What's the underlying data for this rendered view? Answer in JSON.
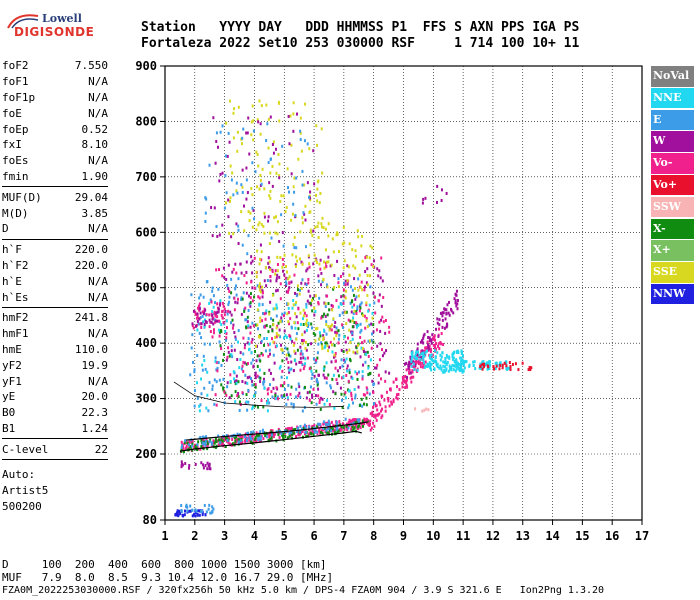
{
  "logo": {
    "line1": "Lowell",
    "line2": "DIGISONDE"
  },
  "header": {
    "line1": "Station   YYYY DAY   DDD HHMMSS P1  FFS S AXN PPS IGA PS",
    "line2": "Fortaleza 2022 Set10 253 030000 RSF     1 714 100 10+ 11"
  },
  "params": {
    "group1": [
      {
        "label": "foF2",
        "value": "7.550"
      },
      {
        "label": "foF1",
        "value": "N/A"
      },
      {
        "label": "foF1p",
        "value": "N/A"
      },
      {
        "label": "foE",
        "value": "N/A"
      },
      {
        "label": "foEp",
        "value": "0.52"
      },
      {
        "label": "fxI",
        "value": "8.10"
      },
      {
        "label": "foEs",
        "value": "N/A"
      },
      {
        "label": "fmin",
        "value": "1.90"
      }
    ],
    "group2": [
      {
        "label": "MUF(D)",
        "value": "29.04"
      },
      {
        "label": "M(D)",
        "value": "3.85"
      },
      {
        "label": "D",
        "value": "N/A"
      }
    ],
    "group3": [
      {
        "label": "h`F",
        "value": "220.0"
      },
      {
        "label": "h`F2",
        "value": "220.0"
      },
      {
        "label": "h`E",
        "value": "N/A"
      },
      {
        "label": "h`Es",
        "value": "N/A"
      }
    ],
    "group4": [
      {
        "label": "hmF2",
        "value": "241.8"
      },
      {
        "label": "hmF1",
        "value": "N/A"
      },
      {
        "label": "hmE",
        "value": "110.0"
      },
      {
        "label": "yF2",
        "value": "19.9"
      },
      {
        "label": "yF1",
        "value": "N/A"
      },
      {
        "label": "yE",
        "value": "20.0"
      },
      {
        "label": "B0",
        "value": "22.3"
      },
      {
        "label": "B1",
        "value": "1.24"
      }
    ],
    "group5": [
      {
        "label": "C-level",
        "value": "22"
      }
    ],
    "auto": [
      "Auto:",
      "Artist5",
      "500200"
    ]
  },
  "legend": [
    {
      "label": "NoVal",
      "color": "#808080"
    },
    {
      "label": "NNE",
      "color": "#22d8f0"
    },
    {
      "label": "E",
      "color": "#3d9ce8"
    },
    {
      "label": "W",
      "color": "#a0109c"
    },
    {
      "label": "Vo-",
      "color": "#f0208c"
    },
    {
      "label": "Vo+",
      "color": "#e8102c"
    },
    {
      "label": "SSW",
      "color": "#f8b4b4"
    },
    {
      "label": "X-",
      "color": "#108c10"
    },
    {
      "label": "X+",
      "color": "#78c060"
    },
    {
      "label": "SSE",
      "color": "#d8d820"
    },
    {
      "label": "NNW",
      "color": "#2020e0"
    }
  ],
  "footer": {
    "line1": "D     100  200  400  600  800 1000 1500 3000 [km]",
    "line2": "MUF   7.9  8.0  8.5  9.3 10.4 12.0 16.7 29.0 [MHz]",
    "line3": "FZA0M_2022253030000.RSF / 320fx256h 50 kHz 5.0 km / DPS-4 FZA0M 904 / 3.9 S 321.6 E   Ion2Png 1.3.20"
  },
  "chart_data": {
    "type": "scatter",
    "xlim": [
      1,
      17
    ],
    "ylim": [
      80,
      900
    ],
    "x_ticks": [
      1,
      2,
      3,
      4,
      5,
      6,
      7,
      8,
      9,
      10,
      11,
      12,
      13,
      14,
      15,
      16,
      17
    ],
    "y_ticks": [
      80,
      200,
      300,
      400,
      500,
      600,
      700,
      800,
      900
    ],
    "grid": true,
    "profile_curve": [
      [
        1.5,
        205
      ],
      [
        2,
        209
      ],
      [
        3,
        215
      ],
      [
        4,
        220
      ],
      [
        5,
        226
      ],
      [
        6,
        232
      ],
      [
        7,
        238
      ],
      [
        7.4,
        241
      ],
      [
        7.6,
        238
      ]
    ],
    "trace_curve": [
      [
        1.7,
        225
      ],
      [
        2.5,
        229
      ],
      [
        3.5,
        234
      ],
      [
        4.5,
        238
      ],
      [
        5.5,
        243
      ],
      [
        6.5,
        249
      ],
      [
        7.5,
        255
      ],
      [
        7.8,
        258
      ]
    ],
    "upper_trace": [
      [
        1.3,
        330
      ],
      [
        2,
        305
      ],
      [
        3,
        292
      ],
      [
        4,
        288
      ],
      [
        5,
        285
      ],
      [
        6,
        284
      ],
      [
        7,
        286
      ]
    ],
    "clusters": [
      {
        "name": "F-trace",
        "color": "#f0208c",
        "x": [
          1.5,
          7.8
        ],
        "y": [
          215,
          260
        ],
        "n": 320
      },
      {
        "name": "F-trace",
        "color": "#108c10",
        "x": [
          1.5,
          7.8
        ],
        "y": [
          215,
          255
        ],
        "n": 140
      },
      {
        "name": "F-trace",
        "color": "#3d9ce8",
        "x": [
          1.5,
          7.5
        ],
        "y": [
          220,
          260
        ],
        "n": 100
      },
      {
        "name": "F2-rise",
        "color": "#f0208c",
        "x": [
          7.8,
          10.3
        ],
        "y": [
          260,
          420
        ],
        "n": 160
      },
      {
        "name": "F2-rise",
        "color": "#a0109c",
        "x": [
          9,
          10.8
        ],
        "y": [
          350,
          480
        ],
        "n": 90
      },
      {
        "name": "F2-top",
        "color": "#22d8f0",
        "x": [
          9.2,
          11
        ],
        "y": [
          350,
          390
        ],
        "n": 140
      },
      {
        "name": "F2-tail",
        "color": "#22d8f0",
        "x": [
          10.5,
          12.5
        ],
        "y": [
          355,
          370
        ],
        "n": 60
      },
      {
        "name": "F2-tail",
        "color": "#e8102c",
        "x": [
          11.5,
          13.3
        ],
        "y": [
          355,
          368
        ],
        "n": 30
      },
      {
        "name": "spread",
        "color": "#a0109c",
        "x": [
          2.8,
          8.5
        ],
        "y": [
          300,
          560
        ],
        "n": 260
      },
      {
        "name": "spread",
        "color": "#3d9ce8",
        "x": [
          1.8,
          8
        ],
        "y": [
          280,
          520
        ],
        "n": 260
      },
      {
        "name": "spread",
        "color": "#108c10",
        "x": [
          2.8,
          8
        ],
        "y": [
          280,
          500
        ],
        "n": 140
      },
      {
        "name": "spread",
        "color": "#f0208c",
        "x": [
          2.5,
          8.5
        ],
        "y": [
          290,
          560
        ],
        "n": 220
      },
      {
        "name": "spread",
        "color": "#22d8f0",
        "x": [
          2,
          8
        ],
        "y": [
          280,
          480
        ],
        "n": 120
      },
      {
        "name": "spread-high",
        "color": "#d8d820",
        "x": [
          4,
          8
        ],
        "y": [
          380,
          620
        ],
        "n": 200
      },
      {
        "name": "spread-top",
        "color": "#d8d820",
        "x": [
          3,
          6.3
        ],
        "y": [
          600,
          840
        ],
        "n": 110
      },
      {
        "name": "spread-top",
        "color": "#a0109c",
        "x": [
          2.5,
          6
        ],
        "y": [
          570,
          820
        ],
        "n": 60
      },
      {
        "name": "spread-top",
        "color": "#3d9ce8",
        "x": [
          2.3,
          6
        ],
        "y": [
          560,
          800
        ],
        "n": 60
      },
      {
        "name": "oblique-left",
        "color": "#f0208c",
        "x": [
          1.8,
          3
        ],
        "y": [
          430,
          475
        ],
        "n": 40
      },
      {
        "name": "oblique-left",
        "color": "#a0109c",
        "x": [
          1.8,
          2.8
        ],
        "y": [
          430,
          465
        ],
        "n": 25
      },
      {
        "name": "E-layer",
        "color": "#a0109c",
        "x": [
          1.5,
          2.5
        ],
        "y": [
          175,
          190
        ],
        "n": 20
      },
      {
        "name": "E-layer",
        "color": "#2020e0",
        "x": [
          1.3,
          2.4
        ],
        "y": [
          90,
          100
        ],
        "n": 40
      },
      {
        "name": "E-layer",
        "color": "#3d9ce8",
        "x": [
          1.5,
          2.6
        ],
        "y": [
          95,
          110
        ],
        "n": 25
      },
      {
        "name": "far",
        "color": "#f8b4b4",
        "x": [
          9.3,
          10
        ],
        "y": [
          280,
          285
        ],
        "n": 5
      },
      {
        "name": "far",
        "color": "#a0109c",
        "x": [
          9.5,
          10.5
        ],
        "y": [
          655,
          690
        ],
        "n": 8
      }
    ]
  }
}
